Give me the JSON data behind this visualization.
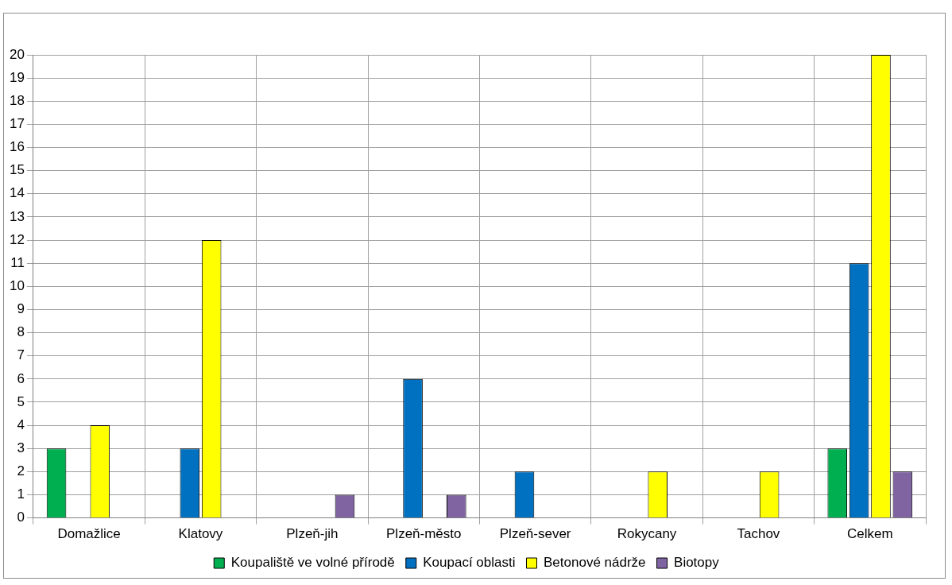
{
  "chart_data": {
    "type": "bar",
    "categories": [
      "Domažlice",
      "Klatovy",
      "Plzeň-jih",
      "Plzeň-město",
      "Plzeň-sever",
      "Rokycany",
      "Tachov",
      "Celkem"
    ],
    "series": [
      {
        "name": "Koupaliště ve volné přírodě",
        "color": "#00b050",
        "values": [
          3,
          null,
          null,
          null,
          null,
          null,
          null,
          3
        ]
      },
      {
        "name": "Koupací oblasti",
        "color": "#0070c0",
        "values": [
          null,
          3,
          null,
          6,
          2,
          null,
          null,
          11
        ]
      },
      {
        "name": "Betonové nádrže",
        "color": "#ffff00",
        "values": [
          4,
          12,
          null,
          null,
          null,
          2,
          2,
          20
        ]
      },
      {
        "name": "Biotopy",
        "color": "#8064a2",
        "values": [
          null,
          null,
          1,
          1,
          null,
          null,
          null,
          2
        ]
      }
    ],
    "ylim": [
      0,
      20
    ],
    "yticks": [
      0,
      1,
      2,
      3,
      4,
      5,
      6,
      7,
      8,
      9,
      10,
      11,
      12,
      13,
      14,
      15,
      16,
      17,
      18,
      19,
      20
    ],
    "grid": true,
    "legend": "bottom"
  }
}
